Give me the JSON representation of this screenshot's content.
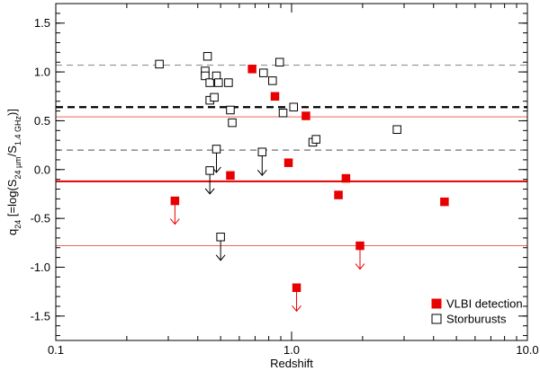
{
  "chart_data": {
    "type": "scatter",
    "xlabel": "Redshift",
    "ylabel": {
      "base": "q",
      "base_sub": "24",
      "open": " [=log(S",
      "sub1": "24 µm",
      "mid": "/S",
      "sub2": "1.4 GHz",
      "close": ")]"
    },
    "x_scale": "log",
    "xlim": [
      0.1,
      10.0
    ],
    "ylim": [
      -1.75,
      1.7
    ],
    "x_ticks": [
      {
        "value": 0.1,
        "label": "0.1"
      },
      {
        "value": 1.0,
        "label": "1.0"
      },
      {
        "value": 10.0,
        "label": "10.0"
      }
    ],
    "y_ticks": [
      {
        "value": -1.5,
        "label": "-1.5"
      },
      {
        "value": -1.0,
        "label": "-1.0"
      },
      {
        "value": -0.5,
        "label": "-0.5"
      },
      {
        "value": 0.0,
        "label": "0.0"
      },
      {
        "value": 0.5,
        "label": "0.5"
      },
      {
        "value": 1.0,
        "label": "1.0"
      },
      {
        "value": 1.5,
        "label": "1.5"
      }
    ],
    "reference_lines": [
      {
        "y": 1.07,
        "color": "#999999",
        "style": "dashed",
        "width": 1.3
      },
      {
        "y": 0.64,
        "color": "#000000",
        "style": "dashed",
        "width": 2.2
      },
      {
        "y": 0.2,
        "color": "#333333",
        "style": "dashed",
        "width": 0.9
      },
      {
        "y": 0.54,
        "color": "#e8504a",
        "style": "solid",
        "width": 0.9
      },
      {
        "y": -0.12,
        "color": "#e00000",
        "style": "solid",
        "width": 2.0
      },
      {
        "y": -0.78,
        "color": "#e8504a",
        "style": "solid",
        "width": 0.9
      }
    ],
    "series": [
      {
        "name": "VLBI detection",
        "marker": "filled-square",
        "color": "#e80000",
        "points": [
          {
            "x": 0.32,
            "y": -0.32,
            "upper_limit": true
          },
          {
            "x": 0.55,
            "y": -0.06
          },
          {
            "x": 0.68,
            "y": 1.03
          },
          {
            "x": 0.85,
            "y": 0.75
          },
          {
            "x": 0.97,
            "y": 0.07
          },
          {
            "x": 1.05,
            "y": -1.21,
            "upper_limit": true
          },
          {
            "x": 1.15,
            "y": 0.55
          },
          {
            "x": 1.58,
            "y": -0.26
          },
          {
            "x": 1.7,
            "y": -0.09
          },
          {
            "x": 1.95,
            "y": -0.78,
            "upper_limit": true
          },
          {
            "x": 4.45,
            "y": -0.33
          }
        ]
      },
      {
        "name": "Storburusts",
        "marker": "open-square",
        "color": "#000000",
        "points": [
          {
            "x": 0.275,
            "y": 1.08
          },
          {
            "x": 0.44,
            "y": 1.16
          },
          {
            "x": 0.43,
            "y": 1.01
          },
          {
            "x": 0.43,
            "y": 0.96
          },
          {
            "x": 0.45,
            "y": 0.89
          },
          {
            "x": 0.48,
            "y": 0.96
          },
          {
            "x": 0.49,
            "y": 0.89
          },
          {
            "x": 0.45,
            "y": 0.71
          },
          {
            "x": 0.47,
            "y": 0.74
          },
          {
            "x": 0.54,
            "y": 0.89
          },
          {
            "x": 0.55,
            "y": 0.61
          },
          {
            "x": 0.56,
            "y": 0.48
          },
          {
            "x": 0.48,
            "y": 0.21,
            "upper_limit": true
          },
          {
            "x": 0.45,
            "y": -0.01,
            "upper_limit": true
          },
          {
            "x": 0.5,
            "y": -0.69,
            "upper_limit": true
          },
          {
            "x": 0.75,
            "y": 0.18,
            "upper_limit": true
          },
          {
            "x": 0.76,
            "y": 0.99
          },
          {
            "x": 0.83,
            "y": 0.91
          },
          {
            "x": 0.89,
            "y": 1.1
          },
          {
            "x": 0.92,
            "y": 0.58
          },
          {
            "x": 1.02,
            "y": 0.64
          },
          {
            "x": 1.23,
            "y": 0.28
          },
          {
            "x": 1.27,
            "y": 0.31
          },
          {
            "x": 2.8,
            "y": 0.41
          }
        ]
      }
    ],
    "legend": {
      "position": "bottom-right",
      "entries": [
        {
          "label": "VLBI detection",
          "marker": "filled-square",
          "color": "#e80000"
        },
        {
          "label": "Storburusts",
          "marker": "open-square",
          "color": "#000000"
        }
      ]
    },
    "grid": false
  }
}
